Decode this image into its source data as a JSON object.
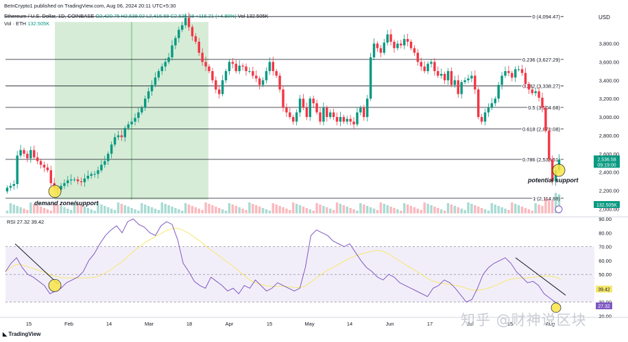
{
  "header": {
    "published": "BeInCrypto1 published on TradingView.com, Aug 06, 2024 20:11 UTC+5:30",
    "symbol": "Ethereum / U.S. Dollar, 1D, COINBASE",
    "ohlc": "O2,420.75 H2,538.02 L2,415.69 C2,536.58 +116.21 (+4.80%)",
    "vol_label": "Vol · ETH",
    "vol_value": "132.505K",
    "vol_inline": "Vol 132.505K"
  },
  "currency": "USD",
  "branding": {
    "tv": "TradingView",
    "watermark": "知乎 @财神说区块"
  },
  "colors": {
    "up": "#089981",
    "down": "#f23645",
    "zone": "#c8e6c9",
    "rsi_line": "#7e57c2",
    "rsi_ma": "#f5e76b",
    "rsi_band": "#ede7f6",
    "circle": "#f9e547"
  },
  "chart_data": [
    {
      "type": "candlestick",
      "title": "Ethereum / U.S. Dollar, 1D, COINBASE",
      "ylim": [
        1950,
        4200
      ],
      "price_ticks": [
        "3,800.00",
        "3,600.00",
        "3,400.00",
        "3,200.00",
        "3,000.00",
        "2,800.00",
        "2,600.00",
        "2,400.00",
        "2,200.00",
        "2,000.00"
      ],
      "x_ticks": [
        "15",
        "Feb",
        "14",
        "Mar",
        "18",
        "Apr",
        "15",
        "May",
        "14",
        "Jun",
        "17",
        "Jul",
        "15",
        "Aug"
      ],
      "current_price": "2,536.58",
      "countdown": "09:19:00",
      "volume_badge": "132.505K",
      "closes": [
        2230,
        2250,
        2270,
        2580,
        2640,
        2600,
        2550,
        2640,
        2560,
        2520,
        2480,
        2450,
        2420,
        2280,
        2230,
        2210,
        2250,
        2280,
        2310,
        2320,
        2320,
        2300,
        2290,
        2330,
        2360,
        2380,
        2380,
        2420,
        2480,
        2520,
        2600,
        2700,
        2780,
        2800,
        2780,
        2880,
        2920,
        2950,
        2990,
        3050,
        3100,
        3200,
        3280,
        3350,
        3430,
        3500,
        3550,
        3600,
        3650,
        3780,
        3860,
        3950,
        4000,
        4080,
        3980,
        3880,
        3820,
        3700,
        3600,
        3550,
        3500,
        3400,
        3300,
        3250,
        3400,
        3500,
        3600,
        3580,
        3500,
        3560,
        3550,
        3500,
        3500,
        3450,
        3420,
        3350,
        3400,
        3500,
        3600,
        3500,
        3450,
        3300,
        3100,
        3050,
        3000,
        2950,
        3050,
        3200,
        3100,
        3000,
        3200,
        3150,
        3050,
        2950,
        3100,
        3000,
        3050,
        3000,
        2950,
        3000,
        2950,
        2980,
        2950,
        2920,
        3050,
        3100,
        3000,
        3200,
        3650,
        3800,
        3750,
        3700,
        3810,
        3900,
        3820,
        3750,
        3800,
        3780,
        3850,
        3820,
        3750,
        3700,
        3600,
        3550,
        3500,
        3580,
        3600,
        3500,
        3450,
        3470,
        3400,
        3500,
        3350,
        3400,
        3250,
        3380,
        3400,
        3420,
        3450,
        3300,
        3000,
        2950,
        3050,
        3100,
        3150,
        3200,
        3350,
        3450,
        3500,
        3480,
        3430,
        3520,
        3520,
        3480,
        3360,
        3300,
        3260,
        3280,
        3210,
        3100,
        2850,
        2540,
        2300,
        2420,
        2537
      ],
      "fib_levels": [
        {
          "label": "0 (4,094.47)",
          "value": 4094.47
        },
        {
          "label": "0.236 (3,627.29)",
          "value": 3627.29
        },
        {
          "label": "0.382 (3,338.27)",
          "value": 3338.27
        },
        {
          "label": "0.5 (3,104.68)",
          "value": 3104.68
        },
        {
          "label": "0.618 (2,871.08)",
          "value": 2871.08
        },
        {
          "label": "0.786 (2,538.51)",
          "value": 2538.51
        },
        {
          "label": "1 (2,114.88)",
          "value": 2114.88
        }
      ],
      "annotations": [
        "demand zone/support",
        "potential support"
      ]
    },
    {
      "type": "line",
      "title": "RSI",
      "values_label": "27.32",
      "ma_label": "39.42",
      "ylim": [
        20,
        90
      ],
      "y_ticks": [
        "90.00",
        "80.00",
        "70.00",
        "60.00",
        "50.00",
        "40.00",
        "30.00",
        "20.00"
      ],
      "current_rsi": "27.32",
      "current_ma": "39.42",
      "overbought": 70,
      "oversold": 30,
      "series": [
        {
          "values": [
            52,
            58,
            62,
            55,
            50,
            48,
            45,
            42,
            36,
            38,
            40,
            44,
            46,
            48,
            52,
            60,
            65,
            72,
            78,
            82,
            85,
            80,
            88,
            90,
            86,
            84,
            80,
            78,
            85,
            88,
            86,
            75,
            58,
            52,
            45,
            42,
            40,
            48,
            45,
            42,
            38,
            40,
            36,
            42,
            40,
            46,
            42,
            38,
            40,
            44,
            42,
            40,
            38,
            40,
            55,
            78,
            82,
            80,
            78,
            74,
            72,
            70,
            72,
            66,
            60,
            55,
            52,
            48,
            46,
            50,
            48,
            44,
            42,
            40,
            38,
            36,
            34,
            40,
            42,
            46,
            44,
            40,
            35,
            30,
            32,
            40,
            50,
            55,
            58,
            60,
            62,
            58,
            52,
            48,
            44,
            45,
            42,
            36,
            33,
            30,
            27
          ]
        }
      ]
    }
  ]
}
